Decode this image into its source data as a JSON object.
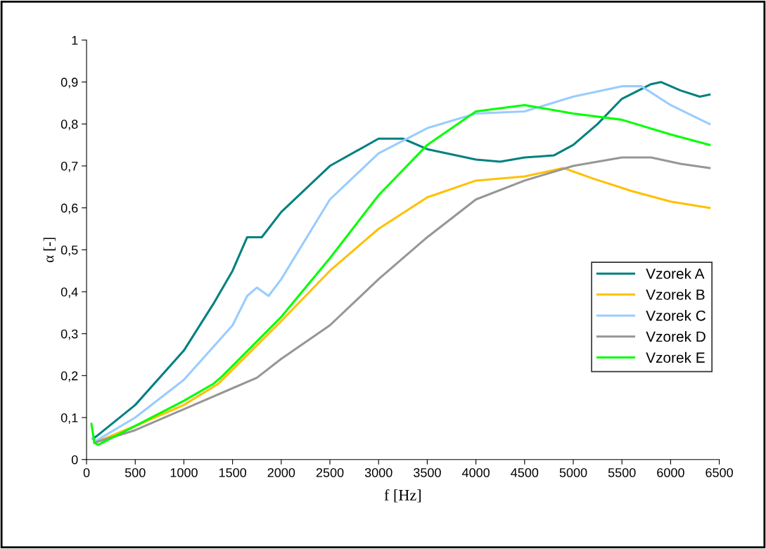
{
  "chart_data": {
    "type": "line",
    "xlabel": "f [Hz]",
    "ylabel": "α [-]",
    "xlim": [
      0,
      6500
    ],
    "xticks": [
      0,
      500,
      1000,
      1500,
      2000,
      2500,
      3000,
      3500,
      4000,
      4500,
      5000,
      5500,
      6000,
      6500
    ],
    "ylim": [
      0,
      1
    ],
    "yticks": [
      {
        "value": 0,
        "label": "0"
      },
      {
        "value": 0.1,
        "label": "0,1"
      },
      {
        "value": 0.2,
        "label": "0,2"
      },
      {
        "value": 0.3,
        "label": "0,3"
      },
      {
        "value": 0.4,
        "label": "0,4"
      },
      {
        "value": 0.5,
        "label": "0,5"
      },
      {
        "value": 0.6,
        "label": "0,6"
      },
      {
        "value": 0.7,
        "label": "0,7"
      },
      {
        "value": 0.8,
        "label": "0,8"
      },
      {
        "value": 0.9,
        "label": "0,9"
      },
      {
        "value": 1,
        "label": "1"
      }
    ],
    "grid": false,
    "legend": "right",
    "marker": "none",
    "line_style": "solid",
    "series": [
      {
        "name": "Vzorek A",
        "color": "#008080",
        "x": [
          64,
          100,
          500,
          1000,
          1300,
          1500,
          1650,
          1800,
          2000,
          2500,
          3000,
          3250,
          3500,
          4000,
          4250,
          4500,
          4800,
          5000,
          5250,
          5500,
          5800,
          5900,
          6100,
          6300,
          6400
        ],
        "values": [
          0.05,
          0.055,
          0.13,
          0.26,
          0.37,
          0.45,
          0.53,
          0.53,
          0.59,
          0.7,
          0.765,
          0.765,
          0.74,
          0.715,
          0.71,
          0.72,
          0.725,
          0.75,
          0.8,
          0.86,
          0.895,
          0.9,
          0.88,
          0.865,
          0.87
        ]
      },
      {
        "name": "Vzorek B",
        "color": "#ffc000",
        "x": [
          80,
          500,
          1000,
          1350,
          2000,
          2500,
          3000,
          3500,
          4000,
          4500,
          4900,
          5200,
          5600,
          6000,
          6400
        ],
        "values": [
          0.04,
          0.08,
          0.13,
          0.18,
          0.33,
          0.45,
          0.55,
          0.625,
          0.665,
          0.675,
          0.695,
          0.67,
          0.64,
          0.615,
          0.6
        ]
      },
      {
        "name": "Vzorek C",
        "color": "#99ccff",
        "x": [
          64,
          100,
          500,
          1000,
          1500,
          1650,
          1750,
          1870,
          2000,
          2500,
          3000,
          3500,
          4000,
          4500,
          5000,
          5500,
          5700,
          6000,
          6400
        ],
        "values": [
          0.05,
          0.045,
          0.1,
          0.19,
          0.32,
          0.39,
          0.41,
          0.39,
          0.43,
          0.62,
          0.73,
          0.79,
          0.825,
          0.83,
          0.865,
          0.89,
          0.89,
          0.845,
          0.8
        ]
      },
      {
        "name": "Vzorek D",
        "color": "#969696",
        "x": [
          80,
          500,
          1000,
          1500,
          1750,
          2000,
          2500,
          3000,
          3500,
          4000,
          4500,
          5000,
          5500,
          5800,
          6100,
          6400
        ],
        "values": [
          0.04,
          0.07,
          0.12,
          0.17,
          0.195,
          0.24,
          0.32,
          0.43,
          0.53,
          0.62,
          0.665,
          0.7,
          0.72,
          0.72,
          0.705,
          0.695
        ]
      },
      {
        "name": "Vzorek E",
        "color": "#00ff00",
        "x": [
          50,
          80,
          120,
          500,
          1000,
          1300,
          1400,
          2000,
          2500,
          3000,
          3500,
          4000,
          4500,
          5000,
          5500,
          6000,
          6400
        ],
        "values": [
          0.085,
          0.04,
          0.035,
          0.08,
          0.14,
          0.18,
          0.2,
          0.34,
          0.48,
          0.63,
          0.75,
          0.83,
          0.845,
          0.825,
          0.81,
          0.775,
          0.75
        ]
      }
    ]
  }
}
